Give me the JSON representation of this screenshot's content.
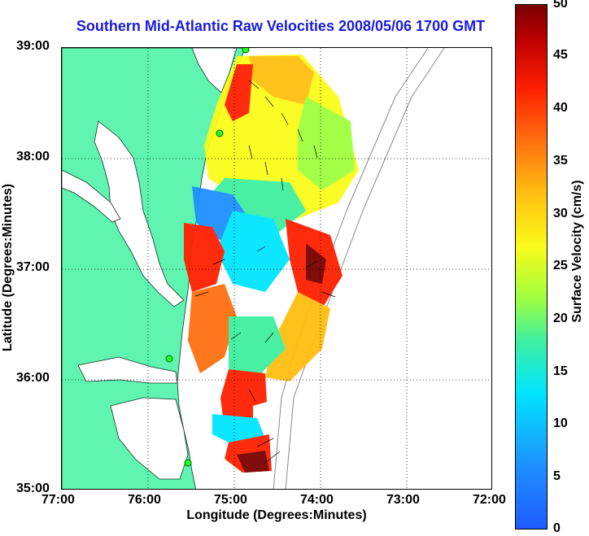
{
  "title": "Southern Mid-Atlantic Raw Velocities 2008/05/06 1700 GMT",
  "x_axis": {
    "label": "Longitude (Degrees:Minutes)",
    "ticks": [
      "77:00",
      "76:00",
      "75:00",
      "74:00",
      "73:00",
      "72:00"
    ]
  },
  "y_axis": {
    "label": "Latitude (Degrees:Minutes)",
    "ticks": [
      "39:00",
      "38:00",
      "37:00",
      "36:00",
      "35:00"
    ]
  },
  "colorbar": {
    "label": "Surface Velocity (cm/s)",
    "ticks": [
      "50",
      "45",
      "40",
      "35",
      "30",
      "25",
      "20",
      "15",
      "10",
      "5",
      "0"
    ],
    "colors": [
      "#1e5bff",
      "#00e5ff",
      "#40f0a0",
      "#fbfb1a",
      "#ff7010",
      "#ff2000",
      "#7a0000"
    ]
  },
  "colors": {
    "land": "#5ff5b0",
    "title": "#1a1adf"
  },
  "map": {
    "lon_range": [
      "77:00",
      "72:00"
    ],
    "lat_range": [
      "35:00",
      "39:00"
    ],
    "grid": true
  }
}
